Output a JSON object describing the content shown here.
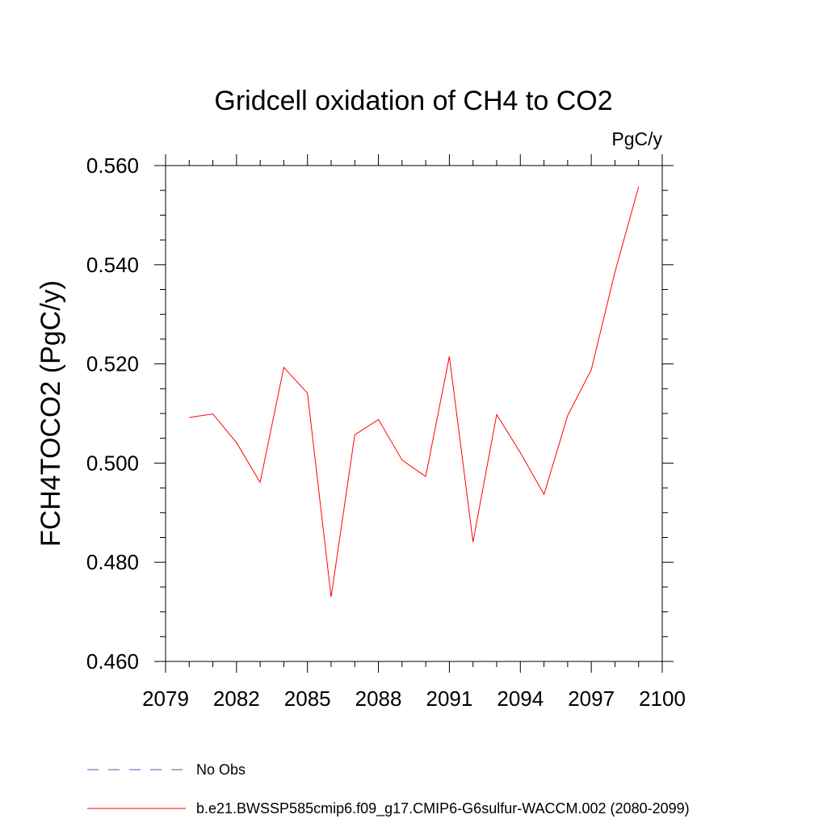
{
  "chart_data": {
    "type": "line",
    "title": "Gridcell oxidation of CH4 to CO2",
    "units": "PgC/y",
    "xlabel": "",
    "ylabel": "FCH4TOCO2  (PgC/y)",
    "xlim": [
      2079,
      2100
    ],
    "ylim": [
      0.46,
      0.56
    ],
    "xticks": [
      "2079",
      "2082",
      "2085",
      "2088",
      "2091",
      "2094",
      "2097",
      "2100"
    ],
    "yticks": [
      "0.460",
      "0.480",
      "0.500",
      "0.520",
      "0.540",
      "0.560"
    ],
    "grid": false,
    "legend_position": "bottom-left",
    "series": [
      {
        "name": "b.e21.BWSSP585cmip6.f09_g17.CMIP6-G6sulfur-WACCM.002 (2080-2099)",
        "color": "#ff0000",
        "style": "solid",
        "x": [
          2080,
          2081,
          2082,
          2083,
          2084,
          2085,
          2086,
          2087,
          2088,
          2089,
          2090,
          2091,
          2092,
          2093,
          2094,
          2095,
          2096,
          2097,
          2098,
          2099
        ],
        "values": [
          0.5092,
          0.5099,
          0.5041,
          0.4961,
          0.5193,
          0.5141,
          0.473,
          0.5057,
          0.5088,
          0.5006,
          0.4973,
          0.5215,
          0.4841,
          0.5098,
          0.5021,
          0.4937,
          0.5096,
          0.5188,
          0.5385,
          0.5557
        ]
      }
    ],
    "legend": [
      {
        "label": "No Obs",
        "color": "#5a4fb0",
        "style": "dashed"
      },
      {
        "label": "b.e21.BWSSP585cmip6.f09_g17.CMIP6-G6sulfur-WACCM.002 (2080-2099)",
        "color": "#ff0000",
        "style": "solid"
      }
    ]
  }
}
